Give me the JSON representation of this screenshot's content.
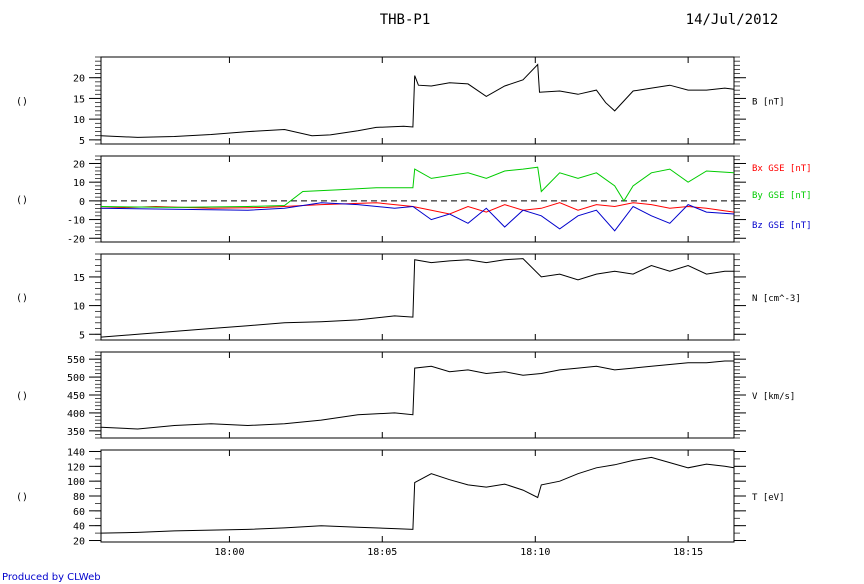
{
  "header": {
    "probe": "THB-P1",
    "date": "14/Jul/2012"
  },
  "credit": "Produced by CLWeb",
  "chart_data": [
    {
      "type": "line",
      "id": "B",
      "ylabel": "B [nT]",
      "left_label": "()",
      "ylim": [
        4,
        25
      ],
      "yticks": [
        5,
        10,
        15,
        20
      ],
      "xlim": [
        17.93,
        18.275
      ],
      "series": [
        {
          "color": "#000000",
          "x": [
            17.93,
            17.95,
            17.97,
            17.99,
            18.01,
            18.03,
            18.045,
            18.055,
            18.07,
            18.08,
            18.095,
            18.1,
            18.101,
            18.103,
            18.11,
            18.12,
            18.13,
            18.14,
            18.15,
            18.16,
            18.168,
            18.169,
            18.18,
            18.19,
            18.2,
            18.205,
            18.21,
            18.22,
            18.23,
            18.24,
            18.25,
            18.26,
            18.27,
            18.275
          ],
          "y": [
            6,
            5.6,
            5.8,
            6.3,
            7,
            7.5,
            6,
            6.2,
            7.2,
            8,
            8.3,
            8.1,
            20.5,
            18.2,
            18,
            18.8,
            18.5,
            15.5,
            18,
            19.5,
            23.2,
            16.5,
            16.8,
            16,
            17,
            14,
            12,
            16.8,
            17.5,
            18.2,
            17,
            17,
            17.5,
            17.2
          ]
        }
      ]
    },
    {
      "type": "line",
      "id": "BGSE",
      "left_label": "()",
      "ylim": [
        -22,
        24
      ],
      "yticks": [
        -20,
        -10,
        0,
        10,
        20
      ],
      "xlim": [
        17.93,
        18.275
      ],
      "legend": [
        "Bx GSE [nT]",
        "By GSE [nT]",
        "Bz GSE [nT]"
      ],
      "zero_line": true,
      "series": [
        {
          "name": "Bx GSE [nT]",
          "color": "#ff0000",
          "x": [
            17.93,
            17.96,
            17.99,
            18.02,
            18.05,
            18.08,
            18.1,
            18.11,
            18.12,
            18.13,
            18.14,
            18.15,
            18.16,
            18.17,
            18.18,
            18.19,
            18.2,
            18.21,
            18.22,
            18.23,
            18.24,
            18.25,
            18.26,
            18.275
          ],
          "y": [
            -4,
            -3,
            -4,
            -3.5,
            -2,
            -1,
            -3,
            -5,
            -7,
            -3,
            -6,
            -2,
            -5,
            -4,
            -1,
            -5,
            -2,
            -3,
            -1,
            -2,
            -4,
            -3,
            -4,
            -6
          ]
        },
        {
          "name": "By GSE [nT]",
          "color": "#00cc00",
          "x": [
            17.93,
            17.97,
            18.01,
            18.03,
            18.04,
            18.06,
            18.08,
            18.1,
            18.101,
            18.11,
            18.13,
            18.14,
            18.15,
            18.16,
            18.168,
            18.17,
            18.18,
            18.19,
            18.2,
            18.21,
            18.215,
            18.22,
            18.23,
            18.24,
            18.25,
            18.26,
            18.275
          ],
          "y": [
            -3,
            -3.5,
            -3,
            -2.5,
            5,
            6,
            7,
            7,
            17,
            12,
            15,
            12,
            16,
            17,
            18,
            5,
            15,
            12,
            15,
            8,
            0,
            8,
            15,
            17,
            10,
            16,
            15
          ]
        },
        {
          "name": "Bz GSE [nT]",
          "color": "#0000cc",
          "x": [
            17.93,
            17.97,
            18.01,
            18.03,
            18.05,
            18.07,
            18.09,
            18.1,
            18.11,
            18.12,
            18.13,
            18.14,
            18.15,
            18.16,
            18.17,
            18.18,
            18.19,
            18.2,
            18.21,
            18.22,
            18.23,
            18.24,
            18.25,
            18.26,
            18.275
          ],
          "y": [
            -4,
            -4.5,
            -5,
            -4,
            -1,
            -2,
            -4,
            -3,
            -10,
            -7,
            -12,
            -4,
            -14,
            -5,
            -8,
            -15,
            -8,
            -5,
            -16,
            -3,
            -8,
            -12,
            -2,
            -6,
            -7
          ]
        }
      ]
    },
    {
      "type": "line",
      "id": "N",
      "ylabel": "N [cm^-3]",
      "left_label": "()",
      "ylim": [
        4,
        19
      ],
      "yticks": [
        5,
        10,
        15
      ],
      "xlim": [
        17.93,
        18.275
      ],
      "series": [
        {
          "color": "#000000",
          "x": [
            17.93,
            17.95,
            17.97,
            17.99,
            18.01,
            18.03,
            18.05,
            18.07,
            18.09,
            18.1,
            18.101,
            18.11,
            18.12,
            18.13,
            18.14,
            18.15,
            18.16,
            18.17,
            18.18,
            18.19,
            18.2,
            18.21,
            18.22,
            18.23,
            18.24,
            18.25,
            18.26,
            18.27,
            18.275
          ],
          "y": [
            4.5,
            5,
            5.5,
            6,
            6.5,
            7,
            7.2,
            7.5,
            8.2,
            8,
            18,
            17.5,
            17.8,
            18,
            17.5,
            18,
            18.2,
            15,
            15.5,
            14.5,
            15.5,
            16,
            15.5,
            17,
            16,
            17,
            15.5,
            16,
            16
          ]
        }
      ]
    },
    {
      "type": "line",
      "id": "V",
      "ylabel": "V [km/s]",
      "left_label": "()",
      "ylim": [
        330,
        570
      ],
      "yticks": [
        350,
        400,
        450,
        500,
        550
      ],
      "xlim": [
        17.93,
        18.275
      ],
      "series": [
        {
          "color": "#000000",
          "x": [
            17.93,
            17.95,
            17.97,
            17.99,
            18.01,
            18.03,
            18.05,
            18.07,
            18.09,
            18.1,
            18.101,
            18.11,
            18.12,
            18.13,
            18.14,
            18.15,
            18.16,
            18.17,
            18.18,
            18.19,
            18.2,
            18.21,
            18.22,
            18.23,
            18.24,
            18.25,
            18.26,
            18.27,
            18.275
          ],
          "y": [
            360,
            355,
            365,
            370,
            365,
            370,
            380,
            395,
            400,
            395,
            525,
            530,
            515,
            520,
            510,
            515,
            505,
            510,
            520,
            525,
            530,
            520,
            525,
            530,
            535,
            540,
            540,
            545,
            545
          ]
        }
      ]
    },
    {
      "type": "line",
      "id": "T",
      "ylabel": "T [eV]",
      "left_label": "()",
      "ylim": [
        18,
        142
      ],
      "yticks": [
        20,
        40,
        60,
        80,
        100,
        120,
        140
      ],
      "xlim": [
        17.93,
        18.275
      ],
      "series": [
        {
          "color": "#000000",
          "x": [
            17.93,
            17.95,
            17.97,
            17.99,
            18.01,
            18.03,
            18.05,
            18.07,
            18.09,
            18.1,
            18.101,
            18.11,
            18.12,
            18.13,
            18.14,
            18.15,
            18.16,
            18.168,
            18.17,
            18.18,
            18.19,
            18.2,
            18.21,
            18.22,
            18.23,
            18.24,
            18.25,
            18.26,
            18.27,
            18.275
          ],
          "y": [
            30,
            31,
            33,
            34,
            35,
            37,
            40,
            38,
            36,
            35,
            98,
            110,
            102,
            95,
            92,
            96,
            88,
            78,
            95,
            100,
            110,
            118,
            122,
            128,
            132,
            125,
            118,
            123,
            120,
            118
          ]
        }
      ]
    }
  ],
  "time_axis": {
    "ticks": [
      18.0,
      18.0833,
      18.1667,
      18.25
    ],
    "tick_labels": [
      "18:00",
      "18:05",
      "18:10",
      "18:15"
    ]
  }
}
